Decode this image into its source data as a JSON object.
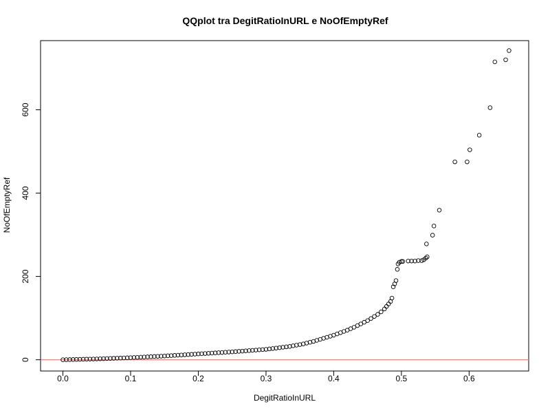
{
  "chart_data": {
    "type": "scatter",
    "title": "QQplot tra DegitRatioInURL e NoOfEmptyRef",
    "xlabel": "DegitRatioInURL",
    "ylabel": "NoOfEmptyRef",
    "xlim": [
      -0.033,
      0.688
    ],
    "ylim": [
      -27,
      766
    ],
    "xticks": [
      0.0,
      0.1,
      0.2,
      0.3,
      0.4,
      0.5,
      0.6
    ],
    "xtick_labels": [
      "0.0",
      "0.1",
      "0.2",
      "0.3",
      "0.4",
      "0.5",
      "0.6"
    ],
    "yticks": [
      0,
      200,
      400,
      600
    ],
    "ytick_labels": [
      "0",
      "200",
      "400",
      "600"
    ],
    "reference_line": {
      "y": 0,
      "color": "#ff8080"
    },
    "point_color": "#000000",
    "grid": false,
    "points": [
      [
        0.0,
        0
      ],
      [
        0.005,
        0.2
      ],
      [
        0.01,
        0.4
      ],
      [
        0.015,
        0.6
      ],
      [
        0.02,
        0.8
      ],
      [
        0.025,
        1
      ],
      [
        0.03,
        1.2
      ],
      [
        0.035,
        1.4
      ],
      [
        0.04,
        1.6
      ],
      [
        0.045,
        1.8
      ],
      [
        0.05,
        2
      ],
      [
        0.055,
        2.3
      ],
      [
        0.06,
        2.6
      ],
      [
        0.065,
        2.9
      ],
      [
        0.07,
        3.2
      ],
      [
        0.075,
        3.5
      ],
      [
        0.08,
        3.8
      ],
      [
        0.085,
        4.1
      ],
      [
        0.09,
        4.4
      ],
      [
        0.095,
        4.7
      ],
      [
        0.1,
        5
      ],
      [
        0.105,
        5.4
      ],
      [
        0.11,
        5.8
      ],
      [
        0.115,
        6.2
      ],
      [
        0.12,
        6.6
      ],
      [
        0.125,
        7
      ],
      [
        0.13,
        7.4
      ],
      [
        0.135,
        7.8
      ],
      [
        0.14,
        8.2
      ],
      [
        0.145,
        8.6
      ],
      [
        0.15,
        9
      ],
      [
        0.155,
        9.5
      ],
      [
        0.16,
        10
      ],
      [
        0.165,
        10.5
      ],
      [
        0.17,
        11
      ],
      [
        0.175,
        11.5
      ],
      [
        0.18,
        12
      ],
      [
        0.185,
        12.5
      ],
      [
        0.19,
        13
      ],
      [
        0.195,
        13.5
      ],
      [
        0.2,
        14
      ],
      [
        0.205,
        14.5
      ],
      [
        0.21,
        15
      ],
      [
        0.215,
        15.5
      ],
      [
        0.22,
        16
      ],
      [
        0.225,
        16.5
      ],
      [
        0.23,
        17
      ],
      [
        0.235,
        17.5
      ],
      [
        0.24,
        18
      ],
      [
        0.245,
        18.5
      ],
      [
        0.25,
        19
      ],
      [
        0.255,
        19.6
      ],
      [
        0.26,
        20.2
      ],
      [
        0.265,
        20.8
      ],
      [
        0.27,
        21.4
      ],
      [
        0.275,
        22
      ],
      [
        0.28,
        22.6
      ],
      [
        0.285,
        23.2
      ],
      [
        0.29,
        23.8
      ],
      [
        0.295,
        24.4
      ],
      [
        0.3,
        25
      ],
      [
        0.305,
        26
      ],
      [
        0.31,
        27
      ],
      [
        0.315,
        28
      ],
      [
        0.32,
        29
      ],
      [
        0.325,
        30
      ],
      [
        0.33,
        31
      ],
      [
        0.335,
        32
      ],
      [
        0.34,
        33.5
      ],
      [
        0.345,
        35
      ],
      [
        0.35,
        36.5
      ],
      [
        0.355,
        38
      ],
      [
        0.36,
        40
      ],
      [
        0.365,
        42
      ],
      [
        0.37,
        44
      ],
      [
        0.375,
        46.5
      ],
      [
        0.38,
        49
      ],
      [
        0.385,
        51.5
      ],
      [
        0.39,
        54
      ],
      [
        0.395,
        56.5
      ],
      [
        0.4,
        59
      ],
      [
        0.405,
        62
      ],
      [
        0.41,
        65
      ],
      [
        0.415,
        68
      ],
      [
        0.42,
        71
      ],
      [
        0.425,
        74.5
      ],
      [
        0.43,
        78
      ],
      [
        0.435,
        82
      ],
      [
        0.44,
        86
      ],
      [
        0.445,
        90
      ],
      [
        0.45,
        94
      ],
      [
        0.455,
        99
      ],
      [
        0.46,
        104
      ],
      [
        0.465,
        109
      ],
      [
        0.47,
        115
      ],
      [
        0.475,
        122
      ],
      [
        0.478,
        128
      ],
      [
        0.481,
        134
      ],
      [
        0.484,
        140
      ],
      [
        0.486,
        148
      ],
      [
        0.488,
        175
      ],
      [
        0.49,
        182
      ],
      [
        0.492,
        190
      ],
      [
        0.494,
        217
      ],
      [
        0.495,
        230
      ],
      [
        0.497,
        234
      ],
      [
        0.5,
        236
      ],
      [
        0.502,
        236
      ],
      [
        0.51,
        237
      ],
      [
        0.515,
        237
      ],
      [
        0.52,
        237
      ],
      [
        0.525,
        238
      ],
      [
        0.53,
        238
      ],
      [
        0.533,
        240
      ],
      [
        0.536,
        244
      ],
      [
        0.538,
        247
      ],
      [
        0.537,
        278
      ],
      [
        0.546,
        299
      ],
      [
        0.548,
        321
      ],
      [
        0.556,
        359
      ],
      [
        0.579,
        475
      ],
      [
        0.597,
        475
      ],
      [
        0.601,
        504
      ],
      [
        0.615,
        539
      ],
      [
        0.631,
        605
      ],
      [
        0.638,
        715
      ],
      [
        0.654,
        720
      ],
      [
        0.659,
        742
      ]
    ]
  }
}
